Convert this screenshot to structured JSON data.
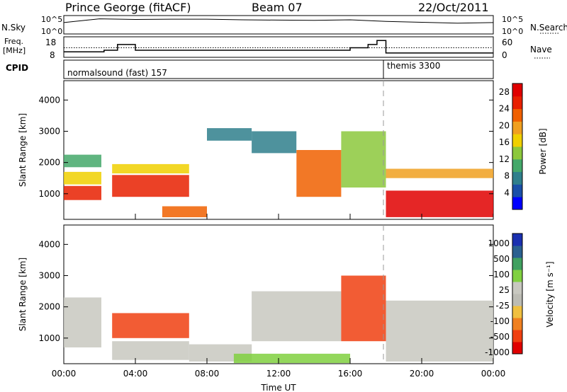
{
  "title": {
    "station": "Prince George (fitACF)",
    "beam": "Beam 07",
    "date": "22/Oct/2011"
  },
  "strip_panels": {
    "nsky": {
      "label": "N.Sky",
      "right_label": "N.Search",
      "left_ticks": [
        "10^5",
        "10^0"
      ],
      "right_ticks": [
        "10^5",
        "10^0"
      ]
    },
    "freq": {
      "label_line1": "Freq.",
      "label_line2": "[MHz]",
      "right_label": "Nave",
      "left_ticks": [
        "18",
        "8"
      ],
      "right_ticks": [
        "60",
        "0"
      ]
    },
    "cpid": {
      "label": "CPID",
      "segments": [
        "normalsound (fast) 157",
        "themis 3300"
      ]
    }
  },
  "xaxis": {
    "label": "Time UT",
    "ticks": [
      "00:00",
      "04:00",
      "08:00",
      "12:00",
      "16:00",
      "20:00",
      "00:00"
    ]
  },
  "colors": {
    "power": [
      "#0000ff",
      "#1a4fa8",
      "#2f7f8c",
      "#44a86a",
      "#8cc83c",
      "#f0d000",
      "#f0a020",
      "#f06000",
      "#e82000",
      "#e00000"
    ],
    "velocity": [
      "#e00000",
      "#f04010",
      "#f08020",
      "#f0c040",
      "#bcbcb4",
      "#c8c8c0",
      "#80d040",
      "#40a060",
      "#2a6090",
      "#1a30b0"
    ]
  },
  "chart_data": [
    {
      "type": "line",
      "title": "",
      "xlabel": "",
      "ylabel": "N.Sky",
      "series": [],
      "x": [
        "00:00",
        "02:00",
        "04:00",
        "06:00",
        "08:00",
        "10:00",
        "12:00",
        "14:00",
        "16:00",
        "18:00",
        "20:00",
        "22:00",
        "24:00"
      ],
      "values": [
        3.2,
        4.4,
        4.2,
        4.3,
        4.3,
        4.1,
        4.0,
        3.9,
        4.1,
        3.6,
        3.3,
        3.0,
        3.2
      ],
      "ylim": [
        0,
        5
      ],
      "yscale": "log"
    },
    {
      "type": "line",
      "title": "",
      "ylabel": "Freq. [MHz]",
      "series": [
        {
          "values": [
            10.5,
            10.5,
            11.5,
            15.0,
            11.5,
            11.5,
            11.5,
            11.5,
            11.5,
            11.5,
            11.5,
            11.5,
            11.5,
            13.0,
            15.0,
            17.5,
            9.8,
            9.8,
            9.8
          ]
        }
      ],
      "x": [
        "00:00",
        "01:30",
        "02:15",
        "03:00",
        "04:00",
        "05:00",
        "06:00",
        "07:00",
        "08:00",
        "09:15",
        "10:00",
        "12:00",
        "14:00",
        "16:00",
        "17:00",
        "17:30",
        "18:00",
        "21:00",
        "24:00"
      ],
      "ylim": [
        8,
        18
      ],
      "nave_line": {
        "ylim": [
          0,
          60
        ],
        "value": 30
      }
    },
    {
      "type": "heatmap",
      "title": "",
      "ylabel": "Slant Range [km]",
      "xlabel": "",
      "ylim": [
        180,
        4620
      ],
      "yticks": [
        "1000",
        "2000",
        "3000",
        "4000"
      ],
      "colorbar": {
        "label": "Power [dB]",
        "ticks": [
          "4",
          "8",
          "12",
          "16",
          "20",
          "24",
          "28"
        ],
        "range": [
          0,
          30
        ]
      },
      "regions": [
        {
          "t0": 0.0,
          "t1": 2.1,
          "r0": 800,
          "r1": 1250,
          "value": 26
        },
        {
          "t0": 0.0,
          "t1": 2.1,
          "r0": 1300,
          "r1": 1700,
          "value": 15
        },
        {
          "t0": 0.0,
          "t1": 2.1,
          "r0": 1850,
          "r1": 2250,
          "value": 11
        },
        {
          "t0": 2.7,
          "t1": 7.0,
          "r0": 900,
          "r1": 1600,
          "value": 25
        },
        {
          "t0": 2.7,
          "t1": 7.0,
          "r0": 1650,
          "r1": 1950,
          "value": 17
        },
        {
          "t0": 5.5,
          "t1": 8.0,
          "r0": 250,
          "r1": 600,
          "value": 22
        },
        {
          "t0": 8.0,
          "t1": 10.5,
          "r0": 2700,
          "r1": 3100,
          "value": 6
        },
        {
          "t0": 10.5,
          "t1": 13.0,
          "r0": 2300,
          "r1": 3000,
          "value": 8
        },
        {
          "t0": 13.0,
          "t1": 15.5,
          "r0": 900,
          "r1": 2400,
          "value": 22
        },
        {
          "t0": 15.5,
          "t1": 18.0,
          "r0": 1200,
          "r1": 3000,
          "value": 14
        },
        {
          "t0": 18.0,
          "t1": 24.0,
          "r0": 250,
          "r1": 1100,
          "value": 29
        },
        {
          "t0": 18.0,
          "t1": 24.0,
          "r0": 1500,
          "r1": 1800,
          "value": 20
        }
      ]
    },
    {
      "type": "heatmap",
      "title": "",
      "ylabel": "Slant Range [km]",
      "xlabel": "Time UT",
      "ylim": [
        180,
        4620
      ],
      "yticks": [
        "1000",
        "2000",
        "3000",
        "4000"
      ],
      "colorbar": {
        "label": "Velocity [m s⁻¹]",
        "ticks": [
          "1000",
          "500",
          "100",
          "25",
          "-25",
          "-100",
          "-500",
          "-1000"
        ]
      },
      "regions": [
        {
          "t0": 0.0,
          "t1": 2.1,
          "r0": 700,
          "r1": 2300,
          "value": 0
        },
        {
          "t0": 2.7,
          "t1": 7.0,
          "r0": 1000,
          "r1": 1800,
          "value": -400
        },
        {
          "t0": 2.7,
          "t1": 7.0,
          "r0": 300,
          "r1": 900,
          "value": 0
        },
        {
          "t0": 7.0,
          "t1": 10.5,
          "r0": 250,
          "r1": 800,
          "value": 0
        },
        {
          "t0": 10.5,
          "t1": 15.5,
          "r0": 900,
          "r1": 2500,
          "value": 0
        },
        {
          "t0": 15.5,
          "t1": 18.0,
          "r0": 900,
          "r1": 3000,
          "value": -150
        },
        {
          "t0": 9.5,
          "t1": 16.0,
          "r0": 200,
          "r1": 500,
          "value": 60
        },
        {
          "t0": 18.0,
          "t1": 24.0,
          "r0": 250,
          "r1": 2200,
          "value": 0
        }
      ]
    }
  ]
}
